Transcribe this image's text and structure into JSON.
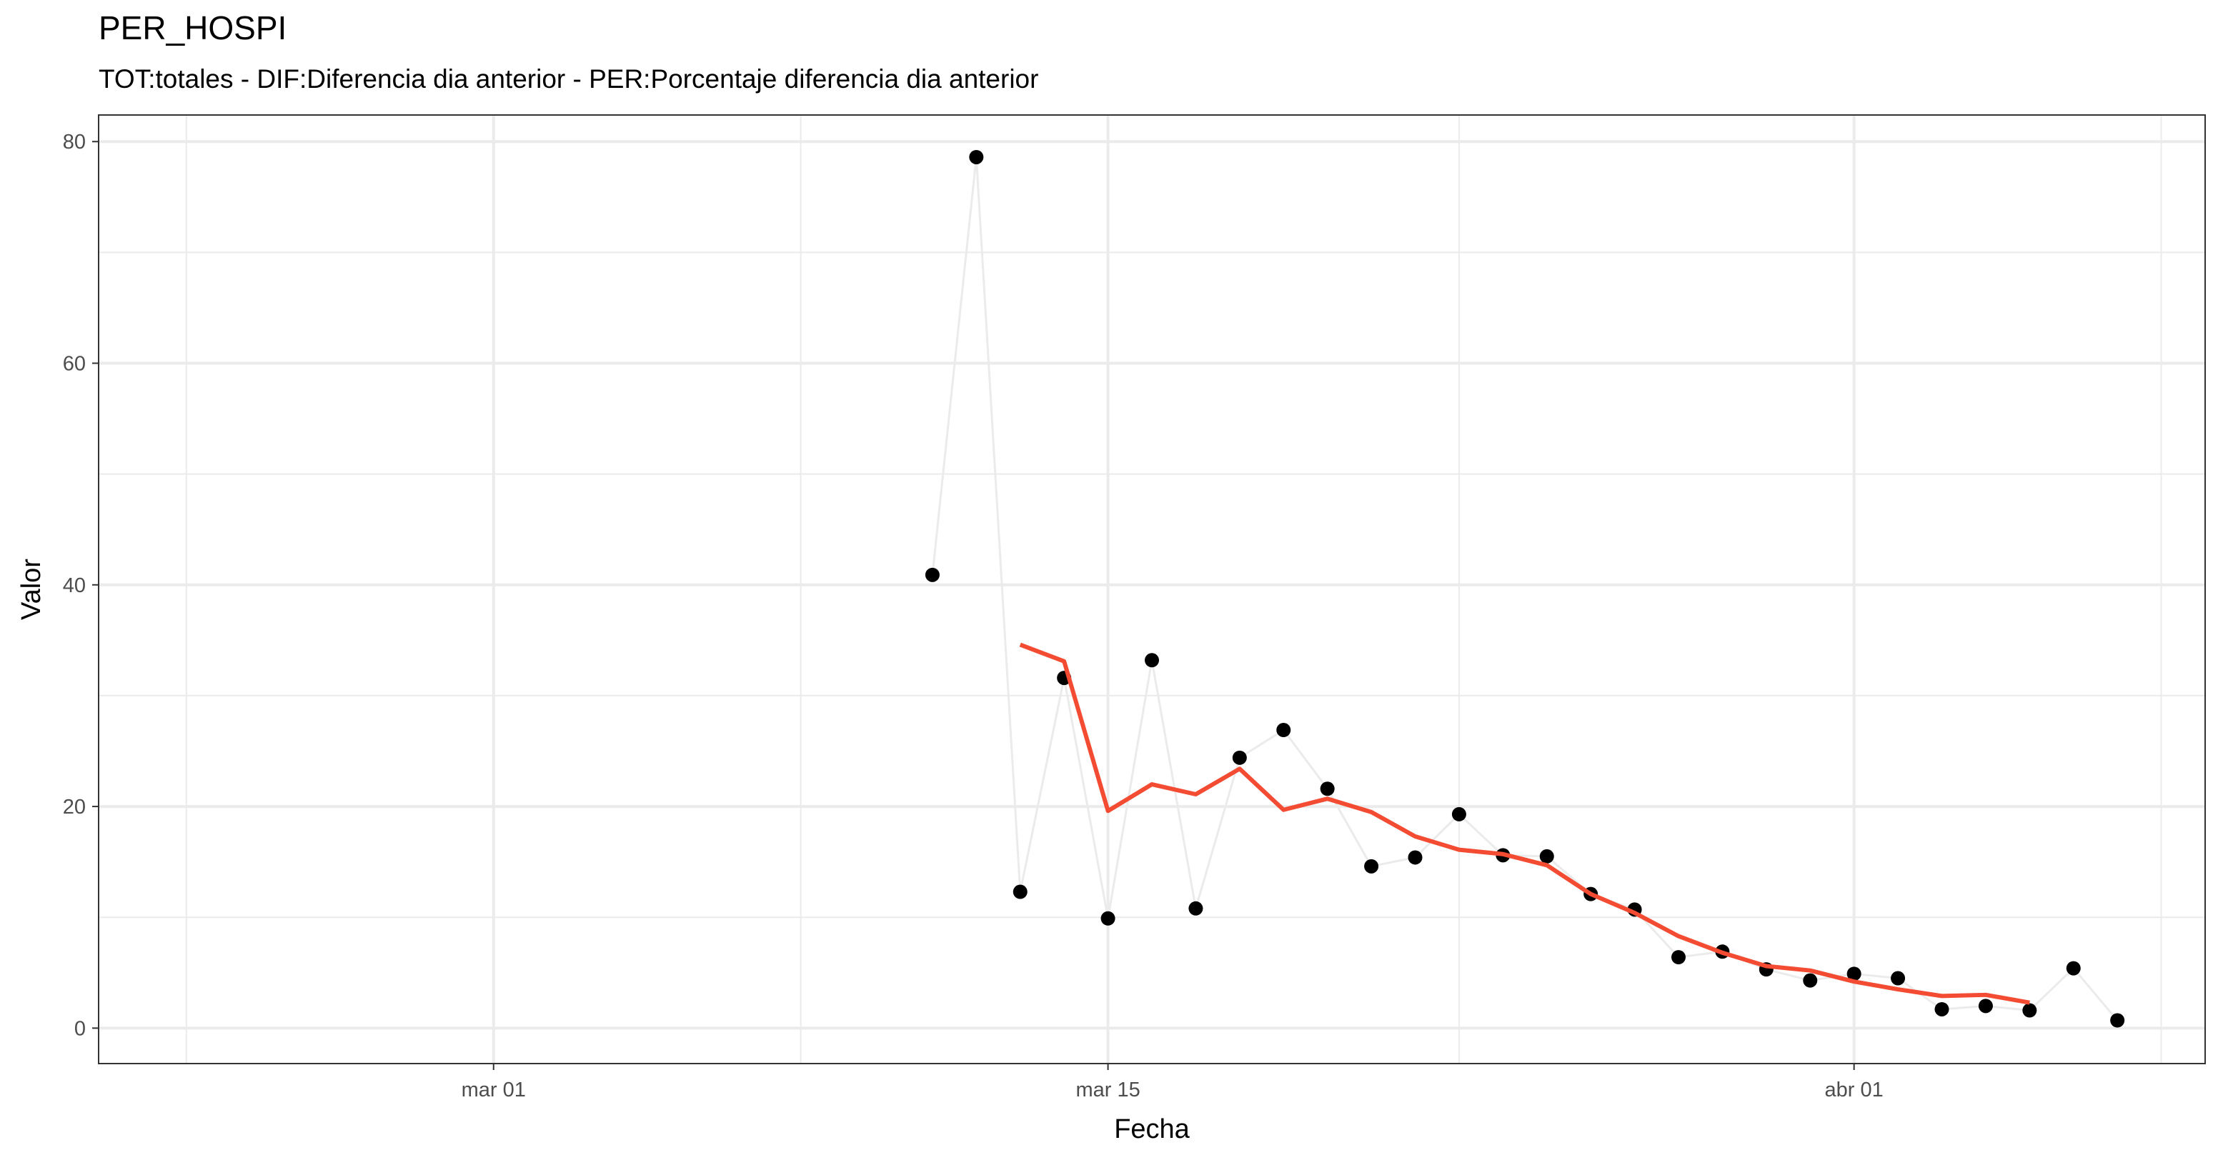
{
  "chart_data": {
    "type": "line",
    "title": "PER_HOSPI",
    "subtitle": "TOT:totales - DIF:Diferencia dia anterior - PER:Porcentaje diferencia dia anterior",
    "xlabel": "Fecha",
    "ylabel": "Valor",
    "xlim": [
      "2020-02-21",
      "2020-04-09"
    ],
    "ylim": [
      -3.2,
      82.4
    ],
    "x_ticks": [
      {
        "date": "2020-03-01",
        "label": "mar 01"
      },
      {
        "date": "2020-03-15",
        "label": "mar 15"
      },
      {
        "date": "2020-04-01",
        "label": "abr 01"
      }
    ],
    "x_minor_ticks": [
      "2020-02-23",
      "2020-03-08",
      "2020-03-23",
      "2020-04-08"
    ],
    "y_ticks": [
      0,
      20,
      40,
      60,
      80
    ],
    "y_minor_ticks": [
      10,
      30,
      50,
      70
    ],
    "grid": true,
    "series": [
      {
        "style": "points-connected",
        "point_color": "#000000",
        "line_color": "#ebebeb",
        "points": [
          {
            "x": "2020-03-11",
            "y": 40.9
          },
          {
            "x": "2020-03-12",
            "y": 78.6
          },
          {
            "x": "2020-03-13",
            "y": 12.3
          },
          {
            "x": "2020-03-14",
            "y": 31.6
          },
          {
            "x": "2020-03-15",
            "y": 9.9
          },
          {
            "x": "2020-03-16",
            "y": 33.2
          },
          {
            "x": "2020-03-17",
            "y": 10.8
          },
          {
            "x": "2020-03-18",
            "y": 24.4
          },
          {
            "x": "2020-03-19",
            "y": 26.9
          },
          {
            "x": "2020-03-20",
            "y": 21.6
          },
          {
            "x": "2020-03-21",
            "y": 14.6
          },
          {
            "x": "2020-03-22",
            "y": 15.4
          },
          {
            "x": "2020-03-23",
            "y": 19.3
          },
          {
            "x": "2020-03-24",
            "y": 15.6
          },
          {
            "x": "2020-03-25",
            "y": 15.5
          },
          {
            "x": "2020-03-26",
            "y": 12.1
          },
          {
            "x": "2020-03-27",
            "y": 10.7
          },
          {
            "x": "2020-03-28",
            "y": 6.4
          },
          {
            "x": "2020-03-29",
            "y": 6.9
          },
          {
            "x": "2020-03-30",
            "y": 5.3
          },
          {
            "x": "2020-03-31",
            "y": 4.3
          },
          {
            "x": "2020-04-01",
            "y": 4.9
          },
          {
            "x": "2020-04-02",
            "y": 4.5
          },
          {
            "x": "2020-04-03",
            "y": 1.7
          },
          {
            "x": "2020-04-04",
            "y": 2.0
          },
          {
            "x": "2020-04-05",
            "y": 1.6
          },
          {
            "x": "2020-04-06",
            "y": 5.4
          },
          {
            "x": "2020-04-07",
            "y": 0.7
          }
        ]
      },
      {
        "style": "line",
        "line_color": "#f44b33",
        "points": [
          {
            "x": "2020-03-13",
            "y": 34.6
          },
          {
            "x": "2020-03-14",
            "y": 33.1
          },
          {
            "x": "2020-03-15",
            "y": 19.6
          },
          {
            "x": "2020-03-16",
            "y": 22.0
          },
          {
            "x": "2020-03-17",
            "y": 21.1
          },
          {
            "x": "2020-03-18",
            "y": 23.4
          },
          {
            "x": "2020-03-19",
            "y": 19.7
          },
          {
            "x": "2020-03-20",
            "y": 20.7
          },
          {
            "x": "2020-03-21",
            "y": 19.5
          },
          {
            "x": "2020-03-22",
            "y": 17.3
          },
          {
            "x": "2020-03-23",
            "y": 16.1
          },
          {
            "x": "2020-03-24",
            "y": 15.7
          },
          {
            "x": "2020-03-25",
            "y": 14.7
          },
          {
            "x": "2020-03-26",
            "y": 12.1
          },
          {
            "x": "2020-03-27",
            "y": 10.4
          },
          {
            "x": "2020-03-28",
            "y": 8.3
          },
          {
            "x": "2020-03-29",
            "y": 6.8
          },
          {
            "x": "2020-03-30",
            "y": 5.6
          },
          {
            "x": "2020-03-31",
            "y": 5.2
          },
          {
            "x": "2020-04-01",
            "y": 4.2
          },
          {
            "x": "2020-04-02",
            "y": 3.5
          },
          {
            "x": "2020-04-03",
            "y": 2.9
          },
          {
            "x": "2020-04-04",
            "y": 3.0
          },
          {
            "x": "2020-04-05",
            "y": 2.3
          }
        ]
      }
    ]
  }
}
